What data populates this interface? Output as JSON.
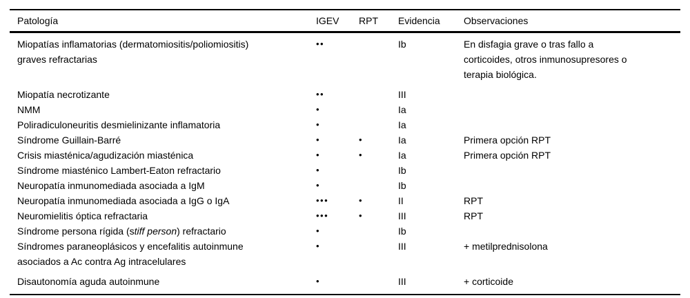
{
  "page": {
    "background_color": "#ffffff",
    "text_color": "#000000",
    "rule_color": "#000000"
  },
  "table": {
    "columns": [
      {
        "key": "pathology",
        "label": "Patología"
      },
      {
        "key": "igev",
        "label": "IGEV"
      },
      {
        "key": "rpt",
        "label": "RPT"
      },
      {
        "key": "evidence",
        "label": "Evidencia"
      },
      {
        "key": "observations",
        "label": "Observaciones"
      }
    ],
    "rows": [
      {
        "pathology": "Miopatías inflamatorias (dermatomiositis/poliomiositis)\ngraves refractarias",
        "igev": "••",
        "rpt": "",
        "evidence": "Ib",
        "observations": "En disfagia grave o tras fallo a\ncorticoides, otros inmunosupresores o\nterapia biológica."
      },
      {
        "pathology": "Miopatía necrotizante",
        "igev": "••",
        "rpt": "",
        "evidence": "III",
        "observations": ""
      },
      {
        "pathology": "NMM",
        "igev": "•",
        "rpt": "",
        "evidence": "Ia",
        "observations": ""
      },
      {
        "pathology": "Poliradiculoneuritis desmielinizante inflamatoria",
        "igev": "•",
        "rpt": "",
        "evidence": "Ia",
        "observations": ""
      },
      {
        "pathology": "Síndrome Guillain-Barré",
        "igev": "•",
        "rpt": "•",
        "evidence": "Ia",
        "observations": "Primera opción RPT"
      },
      {
        "pathology": "Crisis miasténica/agudización miasténica",
        "igev": "•",
        "rpt": "•",
        "evidence": "Ia",
        "observations": "Primera opción RPT"
      },
      {
        "pathology": "Síndrome miasténico Lambert-Eaton refractario",
        "igev": "•",
        "rpt": "",
        "evidence": "Ib",
        "observations": ""
      },
      {
        "pathology": "Neuropatía inmunomediada asociada a IgM",
        "igev": "•",
        "rpt": "",
        "evidence": "Ib",
        "observations": ""
      },
      {
        "pathology": "Neuropatía inmunomediada asociada a IgG o IgA",
        "igev": "•••",
        "rpt": "•",
        "evidence": "II",
        "observations": "RPT"
      },
      {
        "pathology": "Neuromielitis óptica refractaria",
        "igev": "•••",
        "rpt": "•",
        "evidence": "III",
        "observations": "RPT"
      },
      {
        "pathology": [
          {
            "t": "Síndrome persona rígida (s"
          },
          {
            "t": "tiff person",
            "italic": true
          },
          {
            "t": ") refractario"
          }
        ],
        "igev": "•",
        "rpt": "",
        "evidence": "Ib",
        "observations": ""
      },
      {
        "pathology": "Síndromes paraneoplásicos y encefalitis autoinmune\nasociados a Ac contra Ag intracelulares",
        "igev": "•",
        "rpt": "",
        "evidence": "III",
        "observations": "+ metilprednisolona"
      },
      {
        "pathology": "Disautonomía aguda autoinmune",
        "igev": "•",
        "rpt": "",
        "evidence": "III",
        "observations": "+ corticoide"
      }
    ]
  }
}
